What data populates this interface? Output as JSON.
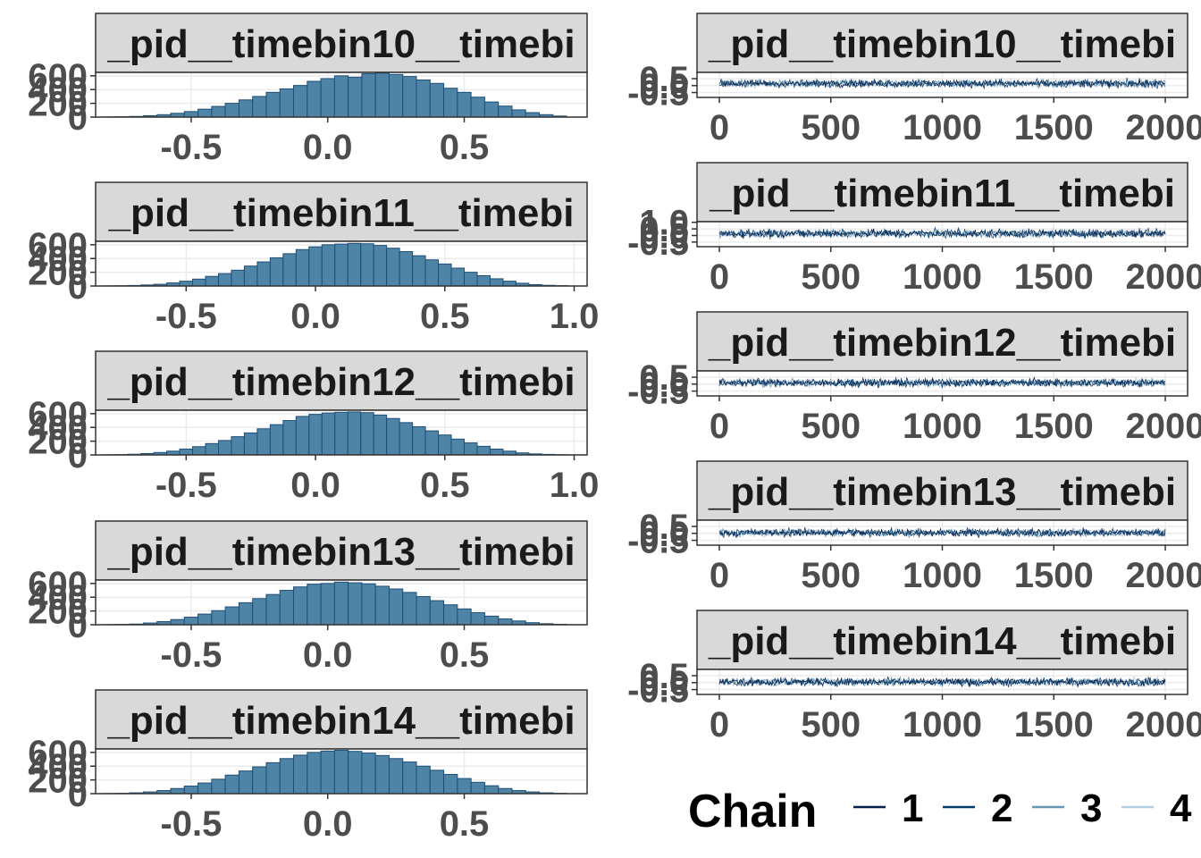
{
  "colors": {
    "hist_fill": "#4e84a5",
    "hist_stroke": "#1f4e79",
    "strip_fill": "#d9d9d9",
    "panel_border": "#333333",
    "grid": "#ebebeb",
    "chain_colors": [
      "#011f4b",
      "#03396c",
      "#6497b1",
      "#b3cde0"
    ]
  },
  "chart_data": [
    {
      "type": "bar",
      "subtype": "histogram",
      "title": "_pid__timebin10__timebi",
      "xlim": [
        -0.85,
        0.95
      ],
      "ylim": [
        0,
        650
      ],
      "xticks": [
        -0.5,
        0.0,
        0.5
      ],
      "xtick_labels": [
        "-0.5",
        "0.0",
        "0.5"
      ],
      "yticks": [
        0,
        200,
        400,
        600
      ],
      "ytick_labels": [
        "0",
        "200",
        "400",
        "600"
      ],
      "bins": [
        -0.8,
        -0.75,
        -0.7,
        -0.65,
        -0.6,
        -0.55,
        -0.5,
        -0.45,
        -0.4,
        -0.35,
        -0.3,
        -0.25,
        -0.2,
        -0.15,
        -0.1,
        -0.05,
        0.0,
        0.05,
        0.1,
        0.15,
        0.2,
        0.25,
        0.3,
        0.35,
        0.4,
        0.45,
        0.5,
        0.55,
        0.6,
        0.65,
        0.7,
        0.75,
        0.8,
        0.85
      ],
      "counts": [
        2,
        5,
        10,
        20,
        35,
        55,
        80,
        115,
        155,
        200,
        250,
        300,
        360,
        410,
        460,
        520,
        560,
        600,
        580,
        630,
        640,
        620,
        590,
        540,
        490,
        420,
        360,
        290,
        220,
        160,
        105,
        65,
        35,
        15
      ]
    },
    {
      "type": "bar",
      "subtype": "histogram",
      "title": "_pid__timebin11__timebi",
      "xlim": [
        -0.85,
        1.05
      ],
      "ylim": [
        0,
        650
      ],
      "xticks": [
        -0.5,
        0.0,
        0.5,
        1.0
      ],
      "xtick_labels": [
        "-0.5",
        "0.0",
        "0.5",
        "1.0"
      ],
      "yticks": [
        0,
        200,
        400,
        600
      ],
      "ytick_labels": [
        "0",
        "200",
        "400",
        "600"
      ],
      "bins": [
        -0.8,
        -0.75,
        -0.7,
        -0.65,
        -0.6,
        -0.55,
        -0.5,
        -0.45,
        -0.4,
        -0.35,
        -0.3,
        -0.25,
        -0.2,
        -0.15,
        -0.1,
        -0.05,
        0.0,
        0.05,
        0.1,
        0.15,
        0.2,
        0.25,
        0.3,
        0.35,
        0.4,
        0.45,
        0.5,
        0.55,
        0.6,
        0.65,
        0.7,
        0.75,
        0.8,
        0.85,
        0.9,
        0.95
      ],
      "counts": [
        2,
        4,
        8,
        15,
        25,
        45,
        70,
        100,
        140,
        180,
        230,
        290,
        350,
        410,
        470,
        530,
        570,
        600,
        610,
        620,
        615,
        590,
        550,
        500,
        440,
        380,
        320,
        260,
        200,
        150,
        105,
        70,
        40,
        20,
        10,
        5
      ]
    },
    {
      "type": "bar",
      "subtype": "histogram",
      "title": "_pid__timebin12__timebi",
      "xlim": [
        -0.85,
        1.05
      ],
      "ylim": [
        0,
        650
      ],
      "xticks": [
        -0.5,
        0.0,
        0.5,
        1.0
      ],
      "xtick_labels": [
        "-0.5",
        "0.0",
        "0.5",
        "1.0"
      ],
      "yticks": [
        0,
        200,
        400,
        600
      ],
      "ytick_labels": [
        "0",
        "200",
        "400",
        "600"
      ],
      "bins": [
        -0.8,
        -0.75,
        -0.7,
        -0.65,
        -0.6,
        -0.55,
        -0.5,
        -0.45,
        -0.4,
        -0.35,
        -0.3,
        -0.25,
        -0.2,
        -0.15,
        -0.1,
        -0.05,
        0.0,
        0.05,
        0.1,
        0.15,
        0.2,
        0.25,
        0.3,
        0.35,
        0.4,
        0.45,
        0.5,
        0.55,
        0.6,
        0.65,
        0.7,
        0.75,
        0.8,
        0.85,
        0.9,
        0.95
      ],
      "counts": [
        2,
        5,
        10,
        20,
        35,
        55,
        85,
        120,
        165,
        210,
        265,
        320,
        380,
        440,
        500,
        560,
        590,
        610,
        620,
        625,
        615,
        580,
        530,
        470,
        410,
        350,
        290,
        230,
        175,
        125,
        85,
        55,
        30,
        15,
        8,
        3
      ]
    },
    {
      "type": "bar",
      "subtype": "histogram",
      "title": "_pid__timebin13__timebi",
      "xlim": [
        -0.85,
        0.95
      ],
      "ylim": [
        0,
        650
      ],
      "xticks": [
        -0.5,
        0.0,
        0.5
      ],
      "xtick_labels": [
        "-0.5",
        "0.0",
        "0.5"
      ],
      "yticks": [
        0,
        200,
        400,
        600
      ],
      "ytick_labels": [
        "0",
        "200",
        "400",
        "600"
      ],
      "bins": [
        -0.8,
        -0.75,
        -0.7,
        -0.65,
        -0.6,
        -0.55,
        -0.5,
        -0.45,
        -0.4,
        -0.35,
        -0.3,
        -0.25,
        -0.2,
        -0.15,
        -0.1,
        -0.05,
        0.0,
        0.05,
        0.1,
        0.15,
        0.2,
        0.25,
        0.3,
        0.35,
        0.4,
        0.45,
        0.5,
        0.55,
        0.6,
        0.65,
        0.7,
        0.75,
        0.8,
        0.85
      ],
      "counts": [
        2,
        5,
        10,
        25,
        45,
        75,
        110,
        155,
        205,
        260,
        320,
        380,
        440,
        500,
        550,
        590,
        600,
        620,
        610,
        595,
        560,
        520,
        470,
        410,
        350,
        290,
        230,
        175,
        125,
        85,
        55,
        30,
        15,
        6
      ]
    },
    {
      "type": "bar",
      "subtype": "histogram",
      "title": "_pid__timebin14__timebi",
      "xlim": [
        -0.85,
        0.95
      ],
      "ylim": [
        0,
        650
      ],
      "xticks": [
        -0.5,
        0.0,
        0.5
      ],
      "xtick_labels": [
        "-0.5",
        "0.0",
        "0.5"
      ],
      "yticks": [
        0,
        200,
        400,
        600
      ],
      "ytick_labels": [
        "0",
        "200",
        "400",
        "600"
      ],
      "bins": [
        -0.8,
        -0.75,
        -0.7,
        -0.65,
        -0.6,
        -0.55,
        -0.5,
        -0.45,
        -0.4,
        -0.35,
        -0.3,
        -0.25,
        -0.2,
        -0.15,
        -0.1,
        -0.05,
        0.0,
        0.05,
        0.1,
        0.15,
        0.2,
        0.25,
        0.3,
        0.35,
        0.4,
        0.45,
        0.5,
        0.55,
        0.6,
        0.65,
        0.7,
        0.75,
        0.8,
        0.85
      ],
      "counts": [
        2,
        5,
        12,
        25,
        45,
        75,
        110,
        155,
        210,
        270,
        330,
        390,
        450,
        510,
        560,
        600,
        620,
        630,
        615,
        590,
        555,
        510,
        460,
        400,
        340,
        280,
        220,
        165,
        115,
        75,
        45,
        25,
        12,
        5
      ]
    },
    {
      "type": "line",
      "subtype": "trace",
      "title": "_pid__timebin10__timebi",
      "xlim": [
        -100,
        2100
      ],
      "ylim": [
        -0.85,
        0.95
      ],
      "xticks": [
        0,
        500,
        1000,
        1500,
        2000
      ],
      "xtick_labels": [
        "0",
        "500",
        "1000",
        "1500",
        "2000"
      ],
      "yticks": [
        -0.5,
        0.0,
        0.5
      ],
      "ytick_labels": [
        "-0.5",
        "0.0",
        "0.5"
      ],
      "iterations": 2000,
      "series_count": 4,
      "center": 0.15,
      "spread": 0.5
    },
    {
      "type": "line",
      "subtype": "trace",
      "title": "_pid__timebin11__timebi",
      "xlim": [
        -100,
        2100
      ],
      "ylim": [
        -0.85,
        1.05
      ],
      "xticks": [
        0,
        500,
        1000,
        1500,
        2000
      ],
      "xtick_labels": [
        "0",
        "500",
        "1000",
        "1500",
        "2000"
      ],
      "yticks": [
        -0.5,
        0.0,
        0.5,
        1.0
      ],
      "ytick_labels": [
        "-0.5",
        "0.0",
        "0.5",
        "1.0"
      ],
      "iterations": 2000,
      "series_count": 4,
      "center": 0.15,
      "spread": 0.55
    },
    {
      "type": "line",
      "subtype": "trace",
      "title": "_pid__timebin12__timebi",
      "xlim": [
        -100,
        2100
      ],
      "ylim": [
        -0.85,
        0.95
      ],
      "xticks": [
        0,
        500,
        1000,
        1500,
        2000
      ],
      "xtick_labels": [
        "0",
        "500",
        "1000",
        "1500",
        "2000"
      ],
      "yticks": [
        -0.5,
        0.0,
        0.5
      ],
      "ytick_labels": [
        "-0.5",
        "0.0",
        "0.5"
      ],
      "iterations": 2000,
      "series_count": 4,
      "center": 0.1,
      "spread": 0.5
    },
    {
      "type": "line",
      "subtype": "trace",
      "title": "_pid__timebin13__timebi",
      "xlim": [
        -100,
        2100
      ],
      "ylim": [
        -0.85,
        0.95
      ],
      "xticks": [
        0,
        500,
        1000,
        1500,
        2000
      ],
      "xtick_labels": [
        "0",
        "500",
        "1000",
        "1500",
        "2000"
      ],
      "yticks": [
        -0.5,
        0.0,
        0.5
      ],
      "ytick_labels": [
        "-0.5",
        "0.0",
        "0.5"
      ],
      "iterations": 2000,
      "series_count": 4,
      "center": 0.05,
      "spread": 0.5
    },
    {
      "type": "line",
      "subtype": "trace",
      "title": "_pid__timebin14__timebi",
      "xlim": [
        -100,
        2100
      ],
      "ylim": [
        -0.85,
        0.95
      ],
      "xticks": [
        0,
        500,
        1000,
        1500,
        2000
      ],
      "xtick_labels": [
        "0",
        "500",
        "1000",
        "1500",
        "2000"
      ],
      "yticks": [
        -0.5,
        0.0,
        0.5
      ],
      "ytick_labels": [
        "-0.5",
        "0.0",
        "0.5"
      ],
      "iterations": 2000,
      "series_count": 4,
      "center": 0.05,
      "spread": 0.5
    }
  ],
  "legend": {
    "title": "Chain",
    "placement": "bottom-right",
    "entries": [
      "1",
      "2",
      "3",
      "4"
    ]
  }
}
